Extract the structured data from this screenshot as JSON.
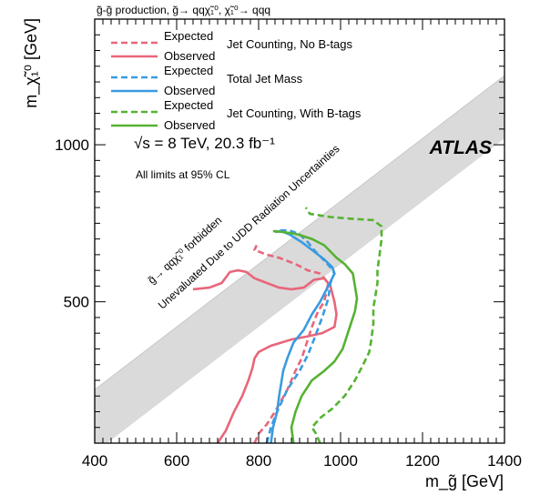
{
  "chart_data": {
    "type": "line",
    "title": "g̃-g̃ production, g̃→ qqχ̃₁⁰, χ̃₁⁰→ qqq",
    "xlabel": "m_g̃ [GeV]",
    "ylabel": "m_χ̃₁⁰ [GeV]",
    "xlim": [
      400,
      1400
    ],
    "ylim": [
      50,
      1400
    ],
    "x_ticks": [
      400,
      600,
      800,
      1000,
      1200,
      1400
    ],
    "y_ticks": [
      500,
      1000
    ],
    "experiment_label": "ATLAS",
    "energy_label": "√s = 8 TeV, 20.3 fb⁻¹",
    "cl_label": "All limits at 95% CL",
    "band_label_forbidden": "g̃→ qqχ̃₁⁰ forbidden",
    "band_label_unevaluated": "Unevaluated Due to UDD Radiation Uncertainties",
    "legend": {
      "groups": [
        {
          "name": "Jet Counting, No B-tags",
          "color": "#e8667a",
          "expected": "Expected",
          "observed": "Observed"
        },
        {
          "name": "Total Jet Mass",
          "color": "#3a9be0",
          "expected": "Expected",
          "observed": "Observed"
        },
        {
          "name": "Jet Counting, With B-tags",
          "color": "#55b232",
          "expected": "Expected",
          "observed": "Observed"
        }
      ]
    },
    "series": [
      {
        "name": "Jet Counting, No B-tags Expected",
        "color": "#e8667a",
        "style": "dashed",
        "points": [
          [
            790,
            50
          ],
          [
            800,
            80
          ],
          [
            820,
            110
          ],
          [
            840,
            150
          ],
          [
            870,
            220
          ],
          [
            890,
            280
          ],
          [
            905,
            320
          ],
          [
            915,
            360
          ],
          [
            930,
            420
          ],
          [
            945,
            470
          ],
          [
            960,
            500
          ],
          [
            970,
            560
          ],
          [
            950,
            590
          ],
          [
            920,
            600
          ],
          [
            890,
            620
          ],
          [
            850,
            640
          ],
          [
            820,
            650
          ],
          [
            790,
            665
          ],
          [
            795,
            680
          ]
        ]
      },
      {
        "name": "Jet Counting, No B-tags Observed",
        "color": "#e8667a",
        "style": "solid",
        "points": [
          [
            700,
            50
          ],
          [
            720,
            90
          ],
          [
            740,
            150
          ],
          [
            760,
            200
          ],
          [
            775,
            250
          ],
          [
            785,
            290
          ],
          [
            790,
            320
          ],
          [
            800,
            340
          ],
          [
            830,
            360
          ],
          [
            880,
            380
          ],
          [
            920,
            390
          ],
          [
            955,
            400
          ],
          [
            985,
            420
          ],
          [
            990,
            460
          ],
          [
            985,
            500
          ],
          [
            975,
            550
          ],
          [
            960,
            575
          ],
          [
            935,
            570
          ],
          [
            910,
            545
          ],
          [
            880,
            540
          ],
          [
            850,
            545
          ],
          [
            820,
            560
          ],
          [
            790,
            575
          ],
          [
            770,
            595
          ],
          [
            750,
            600
          ],
          [
            730,
            595
          ],
          [
            710,
            560
          ],
          [
            680,
            545
          ],
          [
            640,
            540
          ]
        ]
      },
      {
        "name": "Total Jet Mass Expected",
        "color": "#3a9be0",
        "style": "dashed",
        "points": [
          [
            820,
            50
          ],
          [
            830,
            100
          ],
          [
            845,
            150
          ],
          [
            870,
            220
          ],
          [
            900,
            280
          ],
          [
            920,
            330
          ],
          [
            935,
            380
          ],
          [
            955,
            450
          ],
          [
            970,
            510
          ],
          [
            975,
            560
          ],
          [
            985,
            590
          ],
          [
            978,
            605
          ],
          [
            965,
            625
          ],
          [
            950,
            645
          ],
          [
            935,
            665
          ],
          [
            920,
            690
          ],
          [
            900,
            715
          ],
          [
            880,
            725
          ],
          [
            860,
            728
          ],
          [
            840,
            725
          ]
        ]
      },
      {
        "name": "Total Jet Mass Observed",
        "color": "#3a9be0",
        "style": "solid",
        "points": [
          [
            830,
            50
          ],
          [
            835,
            100
          ],
          [
            845,
            150
          ],
          [
            850,
            200
          ],
          [
            855,
            240
          ],
          [
            860,
            280
          ],
          [
            870,
            320
          ],
          [
            885,
            370
          ],
          [
            910,
            410
          ],
          [
            930,
            460
          ],
          [
            950,
            500
          ],
          [
            970,
            550
          ],
          [
            985,
            590
          ],
          [
            980,
            610
          ],
          [
            960,
            635
          ],
          [
            935,
            660
          ],
          [
            905,
            690
          ],
          [
            875,
            715
          ],
          [
            855,
            725
          ],
          [
            840,
            722
          ]
        ]
      },
      {
        "name": "Jet Counting, With B-tags Expected",
        "color": "#55b232",
        "style": "dashed",
        "points": [
          [
            950,
            50
          ],
          [
            940,
            80
          ],
          [
            930,
            100
          ],
          [
            950,
            130
          ],
          [
            980,
            160
          ],
          [
            1010,
            200
          ],
          [
            1035,
            250
          ],
          [
            1055,
            300
          ],
          [
            1070,
            340
          ],
          [
            1075,
            380
          ],
          [
            1080,
            430
          ],
          [
            1080,
            480
          ],
          [
            1085,
            520
          ],
          [
            1090,
            560
          ],
          [
            1090,
            600
          ],
          [
            1095,
            650
          ],
          [
            1100,
            700
          ],
          [
            1100,
            740
          ],
          [
            1080,
            760
          ],
          [
            1020,
            765
          ],
          [
            975,
            770
          ],
          [
            925,
            780
          ],
          [
            915,
            800
          ]
        ]
      },
      {
        "name": "Jet Counting, With B-tags Observed",
        "color": "#55b232",
        "style": "solid",
        "points": [
          [
            885,
            50
          ],
          [
            880,
            100
          ],
          [
            890,
            150
          ],
          [
            905,
            200
          ],
          [
            930,
            250
          ],
          [
            960,
            280
          ],
          [
            985,
            310
          ],
          [
            1005,
            350
          ],
          [
            1015,
            390
          ],
          [
            1025,
            430
          ],
          [
            1035,
            470
          ],
          [
            1040,
            510
          ],
          [
            1035,
            550
          ],
          [
            1030,
            590
          ],
          [
            1010,
            620
          ],
          [
            990,
            640
          ],
          [
            975,
            660
          ],
          [
            960,
            680
          ],
          [
            930,
            700
          ],
          [
            895,
            715
          ],
          [
            860,
            722
          ],
          [
            835,
            725
          ]
        ]
      }
    ]
  }
}
